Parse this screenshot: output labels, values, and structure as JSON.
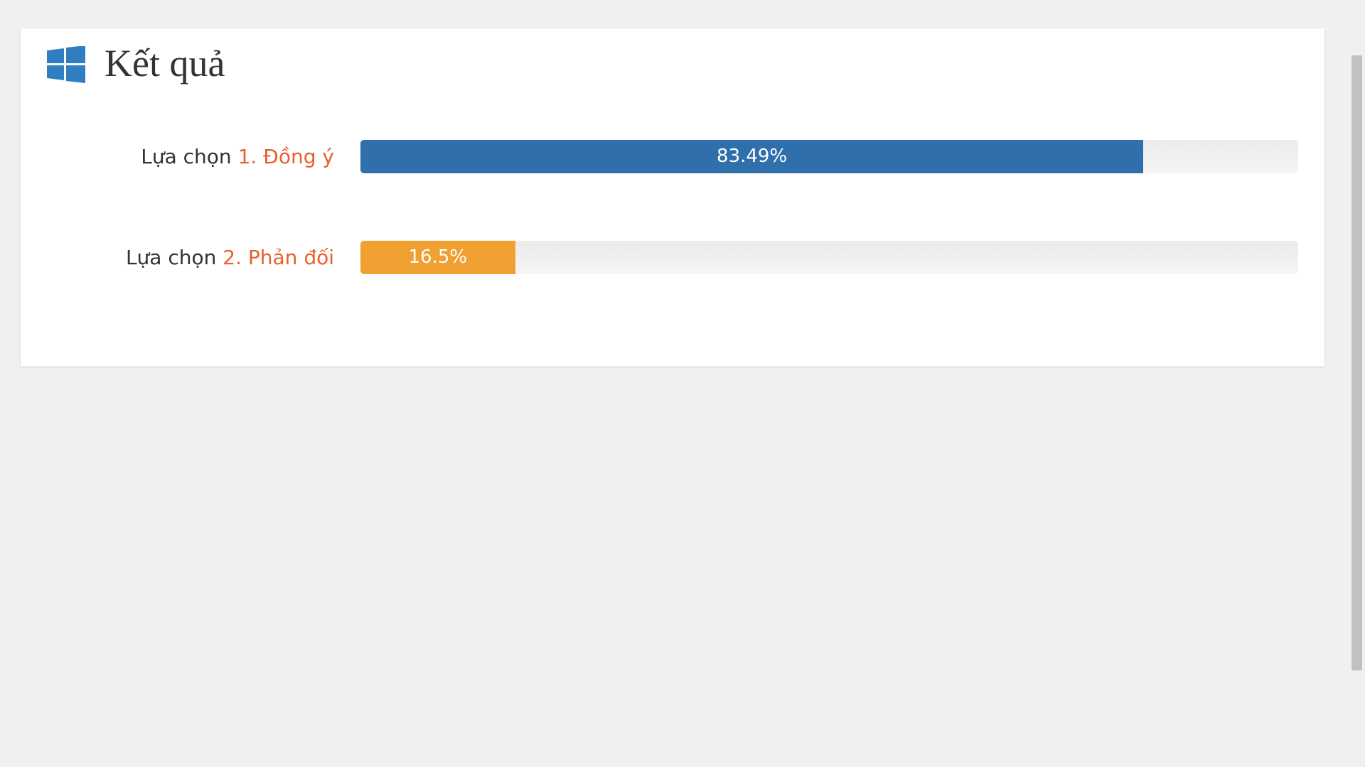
{
  "header": {
    "title": "Kết quả"
  },
  "results": {
    "xlim": [
      0,
      100
    ],
    "items": [
      {
        "prefix": "Lựa chọn",
        "label": "1. Đồng ý",
        "color": "#2f6fab"
      },
      {
        "prefix": "Lựa chọn",
        "label": "2. Phản đối",
        "color": "#f0a030"
      }
    ],
    "values": [
      83.49,
      16.5
    ],
    "value_labels": [
      "83.49%",
      "16.5%"
    ]
  }
}
